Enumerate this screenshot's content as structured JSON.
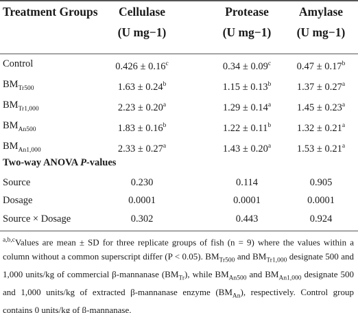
{
  "table": {
    "header": [
      [
        "Treatment Groups"
      ],
      [
        "Cellulase",
        "(U mg−1)"
      ],
      [
        "Protease",
        "(U mg−1)"
      ],
      [
        "Amylase",
        "(U mg−1)"
      ]
    ],
    "rows": [
      [
        [
          {
            "t": "Control"
          }
        ],
        [
          {
            "t": "0.426 ± 0.16"
          },
          {
            "t": "c",
            "k": "sup"
          }
        ],
        [
          {
            "t": "0.34 ± 0.09"
          },
          {
            "t": "c",
            "k": "sup"
          }
        ],
        [
          {
            "t": "0.47 ± 0.17"
          },
          {
            "t": "b",
            "k": "sup"
          }
        ]
      ],
      [
        [
          {
            "t": "BM"
          },
          {
            "t": "Tr500",
            "k": "sub"
          }
        ],
        [
          {
            "t": "1.63 ± 0.24"
          },
          {
            "t": "b",
            "k": "sup"
          }
        ],
        [
          {
            "t": "1.15 ± 0.13"
          },
          {
            "t": "b",
            "k": "sup"
          }
        ],
        [
          {
            "t": "1.37 ± 0.27"
          },
          {
            "t": "a",
            "k": "sup"
          }
        ]
      ],
      [
        [
          {
            "t": "BM"
          },
          {
            "t": "Tr1,000",
            "k": "sub"
          }
        ],
        [
          {
            "t": "2.23 ± 0.20"
          },
          {
            "t": "a",
            "k": "sup"
          }
        ],
        [
          {
            "t": "1.29 ± 0.14"
          },
          {
            "t": "a",
            "k": "sup"
          }
        ],
        [
          {
            "t": "1.45 ± 0.23"
          },
          {
            "t": "a",
            "k": "sup"
          }
        ]
      ],
      [
        [
          {
            "t": "BM"
          },
          {
            "t": "An500",
            "k": "sub"
          }
        ],
        [
          {
            "t": "1.83 ± 0.16"
          },
          {
            "t": "b",
            "k": "sup"
          }
        ],
        [
          {
            "t": "1.22 ± 0.11"
          },
          {
            "t": "b",
            "k": "sup"
          }
        ],
        [
          {
            "t": "1.32 ± 0.21"
          },
          {
            "t": "a",
            "k": "sup"
          }
        ]
      ],
      [
        [
          {
            "t": "BM"
          },
          {
            "t": "An1,000",
            "k": "sub"
          }
        ],
        [
          {
            "t": "2.33 ± 0.27"
          },
          {
            "t": "a",
            "k": "sup"
          }
        ],
        [
          {
            "t": "1.43 ± 0.20"
          },
          {
            "t": "a",
            "k": "sup"
          }
        ],
        [
          {
            "t": "1.53 ± 0.21"
          },
          {
            "t": "a",
            "k": "sup"
          }
        ]
      ]
    ],
    "anova_title": [
      {
        "t": "Two-way ANOVA "
      },
      {
        "t": "P",
        "k": "i"
      },
      {
        "t": "-values"
      }
    ],
    "anova_rows": [
      [
        [
          {
            "t": "Source"
          }
        ],
        [
          {
            "t": "0.230"
          }
        ],
        [
          {
            "t": "0.114"
          }
        ],
        [
          {
            "t": "0.905"
          }
        ]
      ],
      [
        [
          {
            "t": "Dosage"
          }
        ],
        [
          {
            "t": "0.0001"
          }
        ],
        [
          {
            "t": "0.0001"
          }
        ],
        [
          {
            "t": "0.0001"
          }
        ]
      ],
      [
        [
          {
            "t": "Source × Dosage"
          }
        ],
        [
          {
            "t": "0.302"
          }
        ],
        [
          {
            "t": "0.443"
          }
        ],
        [
          {
            "t": "0.924"
          }
        ]
      ]
    ]
  },
  "footnote": [
    {
      "t": "a,b,c",
      "k": "sup"
    },
    {
      "t": "Values are mean ± SD for three replicate groups of fish (n = 9) where the values within a column without a common superscript differ (P < 0.05). BM"
    },
    {
      "t": "Tr500",
      "k": "sub"
    },
    {
      "t": " and BM"
    },
    {
      "t": "Tr1,000",
      "k": "sub"
    },
    {
      "t": " designate 500 and 1,000 units/kg of commercial β-mannanase (BM"
    },
    {
      "t": "Tr",
      "k": "sub"
    },
    {
      "t": "), while BM"
    },
    {
      "t": "An500",
      "k": "sub"
    },
    {
      "t": " and BM"
    },
    {
      "t": "An1,000",
      "k": "sub"
    },
    {
      "t": " designate 500 and 1,000 units/kg of extracted β-mannanase enzyme (BM"
    },
    {
      "t": "An",
      "k": "sub"
    },
    {
      "t": "), respectively. Control group contains 0 units/kg of β-mannanase."
    }
  ]
}
